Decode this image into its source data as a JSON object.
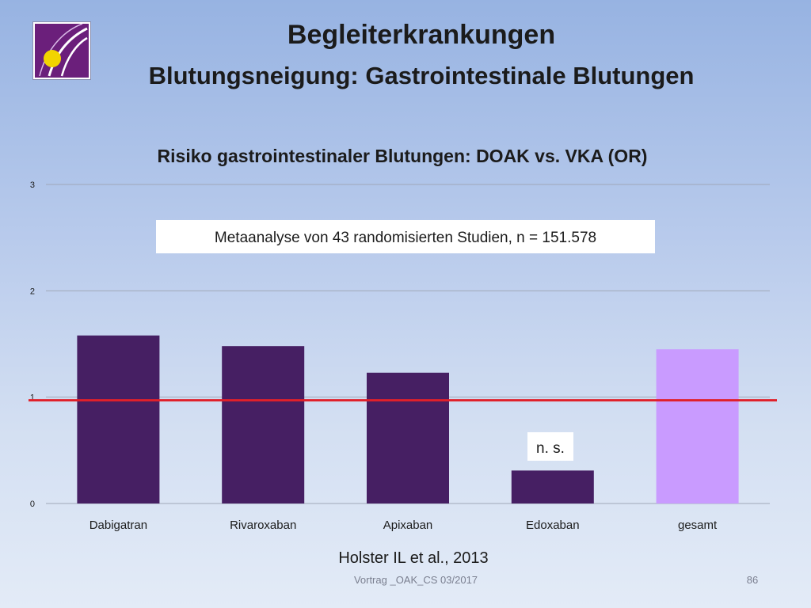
{
  "slide": {
    "title": "Begleiterkrankungen",
    "subtitle": "Blutungsneigung: Gastrointestinale Blutungen",
    "footer_left": "Vortrag _OAK_CS 03/2017",
    "footer_right": "86"
  },
  "logo": {
    "name": "logo-icon",
    "colors": {
      "background": "#6b1f7b",
      "dot": "#f2d400"
    }
  },
  "colors": {
    "bar_default": "#461f63",
    "bar_highlight": "#c99bff",
    "reference_line": "#e0202a",
    "gridline": "#a0a8b8"
  },
  "chart_data": {
    "type": "bar",
    "title": "Risiko gastrointestinaler Blutungen: DOAK vs. VKA (OR)",
    "xlabel": "",
    "ylabel": "",
    "categories": [
      "Dabigatran",
      "Rivaroxaban",
      "Apixaban",
      "Edoxaban",
      "gesamt"
    ],
    "values": [
      1.58,
      1.48,
      1.23,
      0.31,
      1.45
    ],
    "highlighted_category": "gesamt",
    "ylim": [
      0,
      3
    ],
    "yticks": [
      "0",
      "1",
      "2",
      "3"
    ],
    "grid": true,
    "legend": "none",
    "reference_line_y": 1,
    "annotations": {
      "study_box": "Metaanalyse von 43 randomisierten Studien, n = 151.578",
      "edoxaban_label": "n. s.",
      "source": "Holster IL et al., 2013"
    }
  }
}
